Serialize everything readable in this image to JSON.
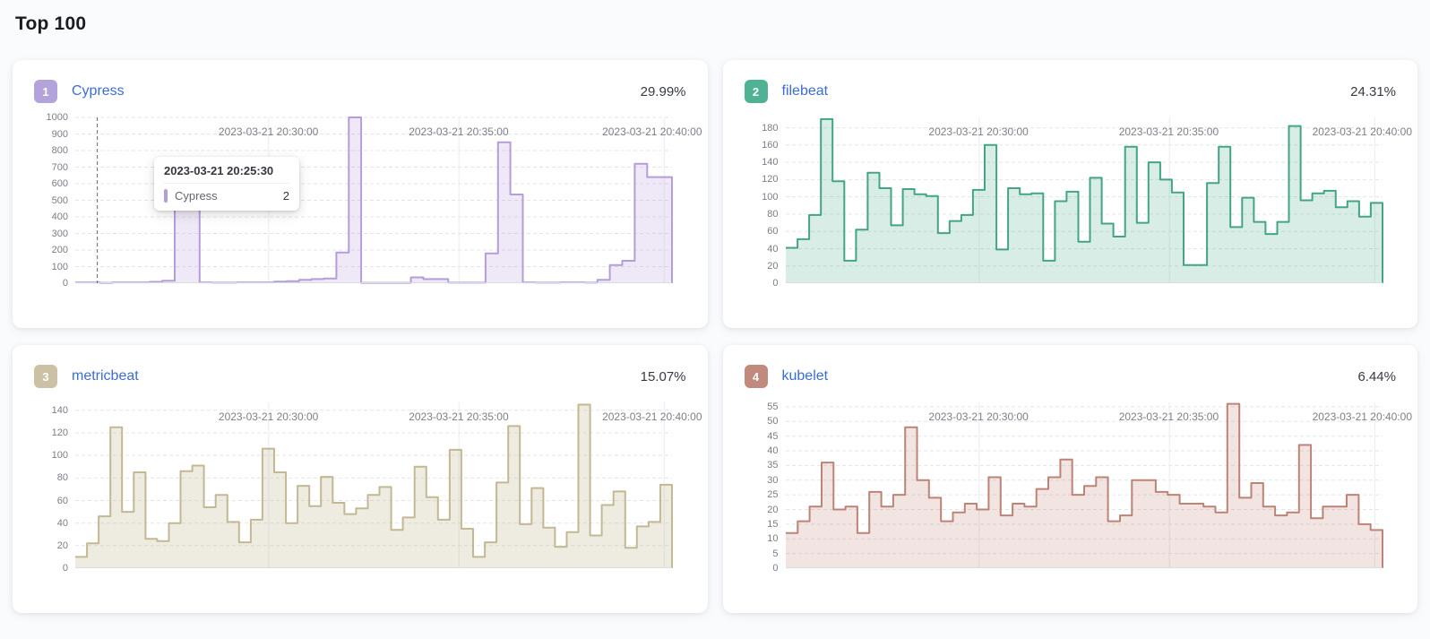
{
  "page": {
    "title": "Top 100"
  },
  "tooltip": {
    "title": "2023-03-21 20:25:30",
    "series_label": "Cypress",
    "series_value": "2"
  },
  "chart_data": [
    {
      "type": "area",
      "rank": "1",
      "name": "Cypress",
      "percent": "29.99%",
      "badge_color": "#b4a2da",
      "line_color": "#b49dd9",
      "fill_color": "rgba(180,157,217,0.22)",
      "y_ticks": [
        0,
        100,
        200,
        300,
        400,
        500,
        600,
        700,
        800,
        900,
        1000
      ],
      "y_max": 1000,
      "x_labels": [
        "2023-03-21 20:30:00",
        "2023-03-21 20:35:00",
        "2023-03-21 20:40:00"
      ],
      "values": [
        5,
        5,
        2,
        5,
        5,
        5,
        8,
        15,
        500,
        500,
        5,
        3,
        3,
        5,
        5,
        5,
        10,
        12,
        20,
        25,
        28,
        185,
        1000,
        2,
        2,
        2,
        2,
        35,
        25,
        25,
        3,
        3,
        3,
        180,
        850,
        535,
        5,
        3,
        3,
        5,
        5,
        3,
        20,
        110,
        135,
        720,
        640,
        640
      ],
      "cursor_frac": 0.037
    },
    {
      "type": "area",
      "rank": "2",
      "name": "filebeat",
      "percent": "24.31%",
      "badge_color": "#4fb294",
      "line_color": "#43a585",
      "fill_color": "rgba(67,165,133,0.20)",
      "y_ticks": [
        0,
        20,
        40,
        60,
        80,
        100,
        120,
        140,
        160,
        180
      ],
      "y_max": 192,
      "x_labels": [
        "2023-03-21 20:30:00",
        "2023-03-21 20:35:00",
        "2023-03-21 20:40:00"
      ],
      "values": [
        41,
        51,
        79,
        190,
        118,
        26,
        62,
        128,
        110,
        67,
        109,
        103,
        101,
        58,
        72,
        79,
        108,
        160,
        39,
        110,
        103,
        104,
        26,
        95,
        106,
        48,
        122,
        69,
        54,
        158,
        70,
        140,
        120,
        105,
        21,
        21,
        116,
        158,
        65,
        99,
        71,
        57,
        71,
        182,
        96,
        104,
        107,
        88,
        95,
        77,
        93
      ],
      "cursor_frac": null
    },
    {
      "type": "area",
      "rank": "3",
      "name": "metricbeat",
      "percent": "15.07%",
      "badge_color": "#ccc1a4",
      "line_color": "#c3b894",
      "fill_color": "rgba(195,184,148,0.28)",
      "y_ticks": [
        0,
        20,
        40,
        60,
        80,
        100,
        120,
        140
      ],
      "y_max": 147,
      "x_labels": [
        "2023-03-21 20:30:00",
        "2023-03-21 20:35:00",
        "2023-03-21 20:40:00"
      ],
      "values": [
        10,
        22,
        46,
        125,
        50,
        85,
        26,
        24,
        40,
        86,
        91,
        54,
        65,
        41,
        23,
        43,
        106,
        85,
        40,
        73,
        55,
        81,
        58,
        48,
        53,
        65,
        72,
        34,
        45,
        90,
        63,
        43,
        105,
        35,
        10,
        23,
        76,
        126,
        39,
        71,
        36,
        19,
        32,
        145,
        29,
        56,
        68,
        18,
        37,
        41,
        74
      ],
      "cursor_frac": null
    },
    {
      "type": "area",
      "rank": "4",
      "name": "kubelet",
      "percent": "6.44%",
      "badge_color": "#c08b7c",
      "line_color": "#bd8377",
      "fill_color": "rgba(189,131,119,0.22)",
      "y_ticks": [
        0,
        5,
        10,
        15,
        20,
        25,
        30,
        35,
        40,
        45,
        50,
        55
      ],
      "y_max": 56.5,
      "x_labels": [
        "2023-03-21 20:30:00",
        "2023-03-21 20:35:00",
        "2023-03-21 20:40:00"
      ],
      "values": [
        12,
        16,
        21,
        36,
        20,
        21,
        12,
        26,
        21,
        25,
        48,
        30,
        24,
        16,
        19,
        22,
        20,
        31,
        18,
        22,
        21,
        27,
        31,
        37,
        25,
        28,
        31,
        16,
        18,
        30,
        30,
        26,
        25,
        22,
        22,
        21,
        19,
        56,
        24,
        29,
        21,
        18,
        19,
        42,
        17,
        21,
        21,
        25,
        15,
        13
      ],
      "cursor_frac": null
    }
  ]
}
